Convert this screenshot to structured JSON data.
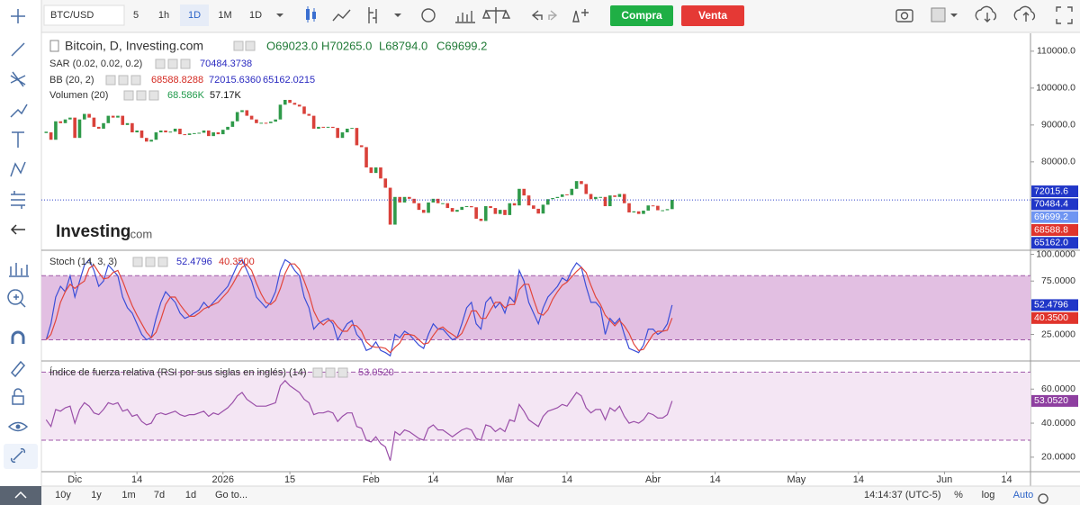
{
  "toolbar": {
    "symbol": "BTC/USD",
    "intervals": [
      "5",
      "1h",
      "1D",
      "1M",
      "1D"
    ],
    "buy": "Compra",
    "sell": "Venta"
  },
  "legend": {
    "title": "Bitcoin, D, Investing.com",
    "ohlc": [
      "O69023.0",
      "H70265.0",
      "L68794.0",
      "C69699.2"
    ],
    "indicators": [
      {
        "name": "SAR (0.02, 0.02, 0.2)",
        "values": [
          "70484.3738"
        ]
      },
      {
        "name": "BB (20, 2)",
        "values": [
          "68588.8288",
          "72015.6360",
          "65162.0215"
        ]
      },
      {
        "name": "Volumen (20)",
        "values": [
          "68.586K",
          "57.17K"
        ]
      }
    ],
    "stoch": {
      "name": "Stoch (14, 3, 3)",
      "values": [
        "52.4796",
        "40.3500"
      ]
    },
    "rsi": {
      "name": "Índice de fuerza relativa (RSI por sus siglas en inglés) (14)",
      "values": [
        "53.0520"
      ]
    }
  },
  "watermark": [
    "Investing",
    ".com"
  ],
  "x_axis": {
    "xlim": [
      -1,
      206
    ],
    "xticks": [
      {
        "value": 6,
        "label": "Dic"
      },
      {
        "value": 19,
        "label": "14"
      },
      {
        "value": 37,
        "label": "2026"
      },
      {
        "value": 51,
        "label": "15"
      },
      {
        "value": 68,
        "label": "Feb"
      },
      {
        "value": 81,
        "label": "14"
      },
      {
        "value": 96,
        "label": "Mar"
      },
      {
        "value": 109,
        "label": "14"
      },
      {
        "value": 127,
        "label": "Abr"
      },
      {
        "value": 140,
        "label": "14"
      },
      {
        "value": 157,
        "label": "May"
      },
      {
        "value": 170,
        "label": "14"
      },
      {
        "value": 188,
        "label": "Jun"
      },
      {
        "value": 201,
        "label": "14"
      }
    ]
  },
  "chart_data": [
    {
      "type": "candlestick",
      "up_color": "#2f9a4a",
      "down_color": "#d9413a",
      "price_line_color": "#3344cc",
      "values": [
        88000,
        86000,
        91000,
        90500,
        91500,
        92000,
        86500,
        91500,
        93000,
        92000,
        89500,
        89000,
        90500,
        92500,
        92000,
        92500,
        90000,
        90500,
        88000,
        88500,
        86500,
        85500,
        86000,
        88000,
        88500,
        88000,
        88200,
        89000,
        87500,
        87300,
        87700,
        87800,
        87900,
        88500,
        87000,
        88000,
        87500,
        88700,
        89500,
        91000,
        93500,
        94000,
        92500,
        91500,
        90500,
        90600,
        90500,
        90900,
        91500,
        95500,
        96800,
        96000,
        95500,
        95000,
        93000,
        92500,
        89000,
        89500,
        89300,
        89500,
        89200,
        86500,
        88000,
        89000,
        89200,
        84500,
        84000,
        78500,
        77000,
        78500,
        75500,
        73000,
        63000,
        70500,
        69000,
        70500,
        70000,
        68800,
        67000,
        66200,
        69000,
        70000,
        68800,
        68800,
        67500,
        66500,
        67000,
        67800,
        68000,
        67700,
        64600,
        64000,
        68000,
        67500,
        65900,
        67000,
        65600,
        68800,
        68200,
        72700,
        70900,
        68200,
        67300,
        66000,
        68400,
        69900,
        70200,
        70500,
        71200,
        71000,
        72700,
        74800,
        74000,
        71300,
        69900,
        70500,
        70500,
        68000,
        70900,
        70500,
        71300,
        68800,
        66300,
        66600,
        65900,
        66800,
        68200,
        68100,
        66900,
        66900,
        67200,
        69699.2
      ],
      "ylim": [
        56300,
        114600
      ],
      "yticks": [
        {
          "value": 110000,
          "label": "110000.0"
        },
        {
          "value": 100000,
          "label": "100000.0"
        },
        {
          "value": 90000,
          "label": "90000.0"
        },
        {
          "value": 80000,
          "label": "80000.0"
        }
      ],
      "tags": [
        {
          "value": 72015.6,
          "label": "72015.6",
          "color": "#2036c8"
        },
        {
          "value": 70484.4,
          "label": "70484.4",
          "color": "#2036c8"
        },
        {
          "value": 69699.2,
          "label": "69699.2",
          "color": "#6f95f2"
        },
        {
          "value": 68588.8,
          "label": "68588.8",
          "color": "#e0342c"
        },
        {
          "value": 65162.0,
          "label": "65162.0",
          "color": "#2036c8"
        }
      ]
    },
    {
      "type": "line",
      "band_fill": "#e2bfe2",
      "band_line": "#a05aa8",
      "bands": [
        20,
        80
      ],
      "series": [
        {
          "name": "%K",
          "color": "#3b4fd8",
          "values": [
            20,
            35,
            60,
            70,
            65,
            80,
            60,
            75,
            90,
            95,
            85,
            70,
            75,
            90,
            85,
            80,
            60,
            50,
            45,
            35,
            25,
            20,
            22,
            40,
            55,
            65,
            60,
            55,
            45,
            40,
            42,
            45,
            48,
            55,
            50,
            55,
            60,
            65,
            70,
            80,
            90,
            95,
            85,
            75,
            60,
            55,
            50,
            55,
            65,
            85,
            95,
            92,
            85,
            80,
            60,
            50,
            30,
            35,
            38,
            40,
            35,
            20,
            28,
            35,
            38,
            25,
            20,
            10,
            12,
            18,
            10,
            8,
            5,
            25,
            22,
            28,
            25,
            20,
            15,
            12,
            25,
            35,
            30,
            30,
            25,
            20,
            22,
            35,
            50,
            55,
            35,
            30,
            55,
            60,
            50,
            55,
            45,
            60,
            55,
            85,
            75,
            55,
            45,
            35,
            50,
            60,
            65,
            70,
            78,
            75,
            85,
            92,
            88,
            70,
            55,
            55,
            50,
            25,
            40,
            35,
            40,
            25,
            12,
            10,
            8,
            15,
            30,
            30,
            25,
            28,
            35,
            52.4796
          ]
        },
        {
          "name": "%D",
          "color": "#e2463c",
          "values": [
            20,
            25,
            38,
            55,
            65,
            72,
            68,
            72,
            75,
            87,
            90,
            83,
            77,
            78,
            83,
            85,
            75,
            63,
            52,
            43,
            35,
            27,
            22,
            27,
            39,
            53,
            60,
            60,
            53,
            47,
            42,
            42,
            45,
            49,
            51,
            53,
            55,
            60,
            65,
            72,
            80,
            88,
            90,
            85,
            73,
            63,
            55,
            53,
            57,
            68,
            82,
            91,
            91,
            86,
            75,
            63,
            47,
            38,
            34,
            38,
            38,
            32,
            28,
            28,
            34,
            33,
            28,
            18,
            14,
            13,
            13,
            12,
            8,
            13,
            17,
            25,
            25,
            24,
            20,
            16,
            17,
            24,
            30,
            32,
            28,
            25,
            22,
            26,
            36,
            47,
            47,
            40,
            40,
            48,
            55,
            55,
            50,
            53,
            53,
            67,
            72,
            72,
            58,
            45,
            43,
            48,
            58,
            65,
            71,
            74,
            79,
            84,
            88,
            83,
            71,
            60,
            53,
            43,
            38,
            33,
            38,
            33,
            26,
            16,
            10,
            11,
            18,
            25,
            28,
            28,
            29,
            40.35
          ]
        }
      ],
      "ylim": [
        1,
        103
      ],
      "yticks": [
        {
          "value": 100,
          "label": "100.0000"
        },
        {
          "value": 75,
          "label": "75.0000"
        },
        {
          "value": 25,
          "label": "25.0000"
        }
      ],
      "tags": [
        {
          "value": 52.4796,
          "label": "52.4796",
          "color": "#2036c8"
        },
        {
          "value": 40.35,
          "label": "40.3500",
          "color": "#e0342c"
        }
      ]
    },
    {
      "type": "line",
      "band_fill": "#f4e6f4",
      "band_line": "#a05aa8",
      "bands": [
        30,
        70
      ],
      "series": [
        {
          "name": "RSI",
          "color": "#9a4fa8",
          "values": [
            42,
            38,
            48,
            47,
            49,
            50,
            40,
            48,
            52,
            50,
            46,
            45,
            48,
            52,
            51,
            52,
            47,
            48,
            44,
            45,
            41,
            39,
            40,
            45,
            46,
            45,
            46,
            47,
            45,
            44,
            45,
            45,
            46,
            47,
            44,
            46,
            45,
            47,
            49,
            52,
            56,
            58,
            54,
            52,
            50,
            50,
            50,
            51,
            52,
            62,
            65,
            62,
            60,
            58,
            54,
            52,
            45,
            46,
            46,
            47,
            46,
            41,
            44,
            46,
            46,
            38,
            37,
            30,
            29,
            32,
            28,
            26,
            18,
            35,
            33,
            36,
            35,
            33,
            31,
            30,
            37,
            39,
            36,
            36,
            34,
            32,
            34,
            36,
            37,
            36,
            31,
            30,
            39,
            38,
            35,
            37,
            35,
            42,
            41,
            51,
            47,
            42,
            40,
            38,
            44,
            47,
            48,
            49,
            51,
            50,
            54,
            58,
            56,
            49,
            46,
            48,
            48,
            42,
            49,
            47,
            50,
            44,
            40,
            41,
            40,
            42,
            46,
            45,
            43,
            43,
            45,
            53.052
          ]
        }
      ],
      "ylim": [
        12,
        76
      ],
      "yticks": [
        {
          "value": 60,
          "label": "60.0000"
        },
        {
          "value": 40,
          "label": "40.0000"
        },
        {
          "value": 20,
          "label": "20.0000"
        }
      ],
      "tags": [
        {
          "value": 53.052,
          "label": "53.0520",
          "color": "#8e3fa0"
        }
      ]
    }
  ],
  "footer": {
    "ranges": [
      "10y",
      "1y",
      "1m",
      "7d",
      "1d"
    ],
    "goto": "Go to...",
    "time": "14:14:37 (UTC-5)",
    "options": [
      "%",
      "log",
      "Auto"
    ]
  }
}
